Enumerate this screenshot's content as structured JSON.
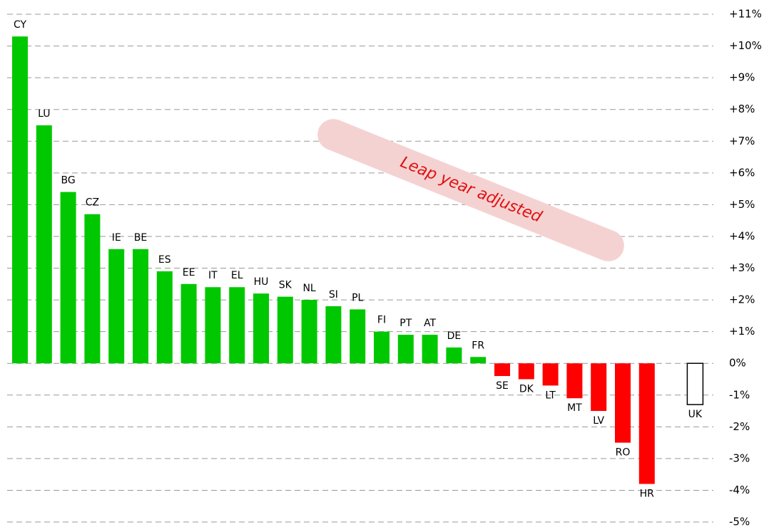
{
  "chart_data": {
    "type": "bar",
    "categories": [
      "CY",
      "LU",
      "BG",
      "CZ",
      "IE",
      "BE",
      "ES",
      "EE",
      "IT",
      "EL",
      "HU",
      "SK",
      "NL",
      "SI",
      "PL",
      "FI",
      "PT",
      "AT",
      "DE",
      "FR",
      "SE",
      "DK",
      "LT",
      "MT",
      "LV",
      "RO",
      "HR",
      null,
      "UK"
    ],
    "values": [
      10.3,
      7.5,
      5.4,
      4.7,
      3.6,
      3.6,
      2.9,
      2.5,
      2.4,
      2.4,
      2.2,
      2.1,
      2.0,
      1.8,
      1.7,
      1.0,
      0.9,
      0.9,
      0.5,
      0.2,
      -0.4,
      -0.5,
      -0.7,
      -1.1,
      -1.5,
      -2.5,
      -3.8,
      null,
      -1.3
    ],
    "colors": [
      "#00c800",
      "#00c800",
      "#00c800",
      "#00c800",
      "#00c800",
      "#00c800",
      "#00c800",
      "#00c800",
      "#00c800",
      "#00c800",
      "#00c800",
      "#00c800",
      "#00c800",
      "#00c800",
      "#00c800",
      "#00c800",
      "#00c800",
      "#00c800",
      "#00c800",
      "#00c800",
      "#ff0000",
      "#ff0000",
      "#ff0000",
      "#ff0000",
      "#ff0000",
      "#ff0000",
      "#ff0000",
      null,
      "#ffffff"
    ],
    "ylim": [
      -5,
      11
    ],
    "yticks": [
      {
        "value": 11,
        "label": "+11%"
      },
      {
        "value": 10,
        "label": "+10%"
      },
      {
        "value": 9,
        "label": "+9%"
      },
      {
        "value": 8,
        "label": "+8%"
      },
      {
        "value": 7,
        "label": "+7%"
      },
      {
        "value": 6,
        "label": "+6%"
      },
      {
        "value": 5,
        "label": "+5%"
      },
      {
        "value": 4,
        "label": "+4%"
      },
      {
        "value": 3,
        "label": "+3%"
      },
      {
        "value": 2,
        "label": "+2%"
      },
      {
        "value": 1,
        "label": "+1%"
      },
      {
        "value": 0,
        "label": "0%"
      },
      {
        "value": -1,
        "label": "-1%"
      },
      {
        "value": -2,
        "label": "-2%"
      },
      {
        "value": -3,
        "label": "-3%"
      },
      {
        "value": -4,
        "label": "-4%"
      },
      {
        "value": -5,
        "label": "-5%"
      }
    ],
    "grid": true,
    "annotation": "Leap year adjusted"
  }
}
